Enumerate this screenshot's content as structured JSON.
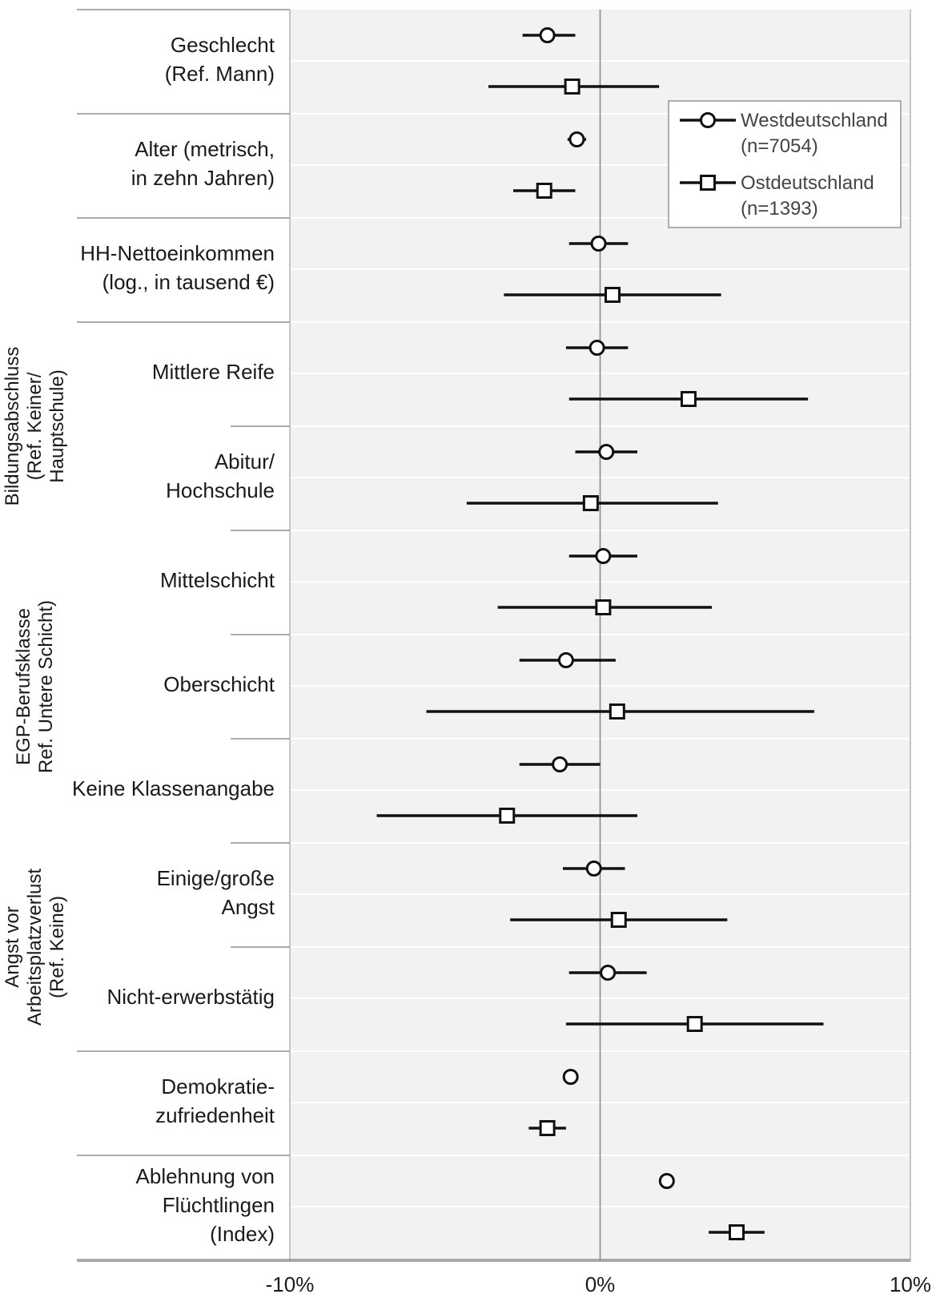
{
  "chart_data": {
    "type": "coefficient-plot",
    "x_ticks": [
      {
        "value": -10,
        "label": "-10%"
      },
      {
        "value": 0,
        "label": "0%"
      },
      {
        "value": 10,
        "label": "10%"
      }
    ],
    "xlim": [
      -10,
      10
    ],
    "grid": true,
    "legend_position": "top-right",
    "series": [
      {
        "key": "west",
        "name": "Westdeutschland",
        "name_n": "(n=7054)",
        "marker": "circle"
      },
      {
        "key": "east",
        "name": "Ostdeutschland",
        "name_n": "(n=1393)",
        "marker": "square"
      }
    ],
    "groups": [
      {
        "label_lines": [
          "Bildungsabschluss",
          "(Ref. Keiner/",
          "Hauptschule)"
        ],
        "first_row": 3,
        "last_row": 4
      },
      {
        "label_lines": [
          "EGP-Berufsklasse",
          "Ref. Untere Schicht)"
        ],
        "first_row": 5,
        "last_row": 7
      },
      {
        "label_lines": [
          "Angst vor",
          "Arbeitsplatzverlust",
          "(Ref. Keine)"
        ],
        "first_row": 8,
        "last_row": 9
      }
    ],
    "rows": [
      {
        "label_lines": [
          "Geschlecht",
          "(Ref. Mann)"
        ],
        "grouped": false,
        "west": {
          "est": -1.7,
          "lo": -2.5,
          "hi": -0.8
        },
        "east": {
          "est": -0.9,
          "lo": -3.6,
          "hi": 1.9
        }
      },
      {
        "label_lines": [
          "Alter (metrisch,",
          "in zehn Jahren)"
        ],
        "grouped": false,
        "west": {
          "est": -0.75,
          "lo": -1.05,
          "hi": -0.45
        },
        "east": {
          "est": -1.8,
          "lo": -2.8,
          "hi": -0.8
        }
      },
      {
        "label_lines": [
          "HH-Nettoeinkommen",
          "(log., in tausend €)"
        ],
        "grouped": false,
        "west": {
          "est": -0.05,
          "lo": -1.0,
          "hi": 0.9
        },
        "east": {
          "est": 0.4,
          "lo": -3.1,
          "hi": 3.9
        }
      },
      {
        "label_lines": [
          "Mittlere Reife"
        ],
        "grouped": true,
        "west": {
          "est": -0.1,
          "lo": -1.1,
          "hi": 0.9
        },
        "east": {
          "est": 2.85,
          "lo": -1.0,
          "hi": 6.7
        }
      },
      {
        "label_lines": [
          "Abitur/",
          "Hochschule"
        ],
        "grouped": true,
        "west": {
          "est": 0.2,
          "lo": -0.8,
          "hi": 1.2
        },
        "east": {
          "est": -0.3,
          "lo": -4.3,
          "hi": 3.8
        }
      },
      {
        "label_lines": [
          "Mittelschicht"
        ],
        "grouped": true,
        "west": {
          "est": 0.1,
          "lo": -1.0,
          "hi": 1.2
        },
        "east": {
          "est": 0.1,
          "lo": -3.3,
          "hi": 3.6
        }
      },
      {
        "label_lines": [
          "Oberschicht"
        ],
        "grouped": true,
        "west": {
          "est": -1.1,
          "lo": -2.6,
          "hi": 0.5
        },
        "east": {
          "est": 0.55,
          "lo": -5.6,
          "hi": 6.9
        }
      },
      {
        "label_lines": [
          "Keine Klassenangabe"
        ],
        "grouped": true,
        "west": {
          "est": -1.3,
          "lo": -2.6,
          "hi": 0.0
        },
        "east": {
          "est": -3.0,
          "lo": -7.2,
          "hi": 1.2
        }
      },
      {
        "label_lines": [
          "Einige/große",
          "Angst"
        ],
        "grouped": true,
        "west": {
          "est": -0.2,
          "lo": -1.2,
          "hi": 0.8
        },
        "east": {
          "est": 0.6,
          "lo": -2.9,
          "hi": 4.1
        }
      },
      {
        "label_lines": [
          "Nicht-erwerbstätig"
        ],
        "grouped": true,
        "west": {
          "est": 0.25,
          "lo": -1.0,
          "hi": 1.5
        },
        "east": {
          "est": 3.05,
          "lo": -1.1,
          "hi": 7.2
        }
      },
      {
        "label_lines": [
          "Demokratie-",
          "zufriedenheit"
        ],
        "grouped": false,
        "west": {
          "est": -0.95,
          "lo": -0.95,
          "hi": -0.95
        },
        "east": {
          "est": -1.7,
          "lo": -2.3,
          "hi": -1.1
        }
      },
      {
        "label_lines": [
          "Ablehnung von",
          "Flüchtlingen",
          "(Index)"
        ],
        "grouped": false,
        "west": {
          "est": 2.15,
          "lo": 1.95,
          "hi": 2.35
        },
        "east": {
          "est": 4.4,
          "lo": 3.5,
          "hi": 5.3
        }
      }
    ]
  }
}
